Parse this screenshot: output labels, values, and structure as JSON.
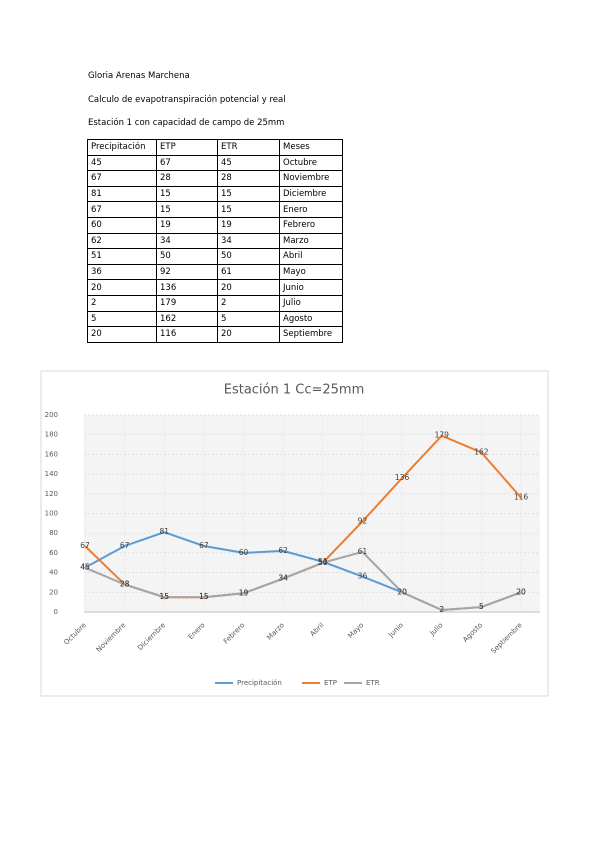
{
  "header": {
    "author": "Gloria Arenas Marchena",
    "subject": "Calculo de evapotranspiración potencial y real",
    "station": "Estación 1 con capacidad de campo de 25mm"
  },
  "table": {
    "columns": [
      "Precipitación",
      "ETP",
      "ETR",
      "Meses"
    ],
    "rows": [
      [
        45,
        67,
        45,
        "Octubre"
      ],
      [
        67,
        28,
        28,
        "Noviembre"
      ],
      [
        81,
        15,
        15,
        "Diciembre"
      ],
      [
        67,
        15,
        15,
        "Enero"
      ],
      [
        60,
        19,
        19,
        "Febrero"
      ],
      [
        62,
        34,
        34,
        "Marzo"
      ],
      [
        51,
        50,
        50,
        "Abril"
      ],
      [
        36,
        92,
        61,
        "Mayo"
      ],
      [
        20,
        136,
        20,
        "Junio"
      ],
      [
        2,
        179,
        2,
        "Julio"
      ],
      [
        5,
        162,
        5,
        "Agosto"
      ],
      [
        20,
        116,
        20,
        "Septiembre"
      ]
    ]
  },
  "chart_data": {
    "type": "line",
    "title": "Estación 1 Cc=25mm",
    "categories": [
      "Octubre",
      "Noviembre",
      "Diciembre",
      "Enero",
      "Febrero",
      "Marzo",
      "Abril",
      "Mayo",
      "Junio",
      "Julio",
      "Agosto",
      "Septiembre"
    ],
    "series": [
      {
        "name": "Precipitación",
        "color": "#5b9bd5",
        "values": [
          45,
          67,
          81,
          67,
          60,
          62,
          51,
          36,
          20,
          2,
          5,
          20
        ]
      },
      {
        "name": "ETP",
        "color": "#ed7d31",
        "values": [
          67,
          28,
          15,
          15,
          19,
          34,
          50,
          92,
          136,
          179,
          162,
          116
        ]
      },
      {
        "name": "ETR",
        "color": "#a5a5a5",
        "values": [
          45,
          28,
          15,
          15,
          19,
          34,
          50,
          61,
          20,
          2,
          5,
          20
        ]
      }
    ],
    "ylim": [
      0,
      200
    ],
    "yticks": [
      0,
      20,
      40,
      60,
      80,
      100,
      120,
      140,
      160,
      180,
      200
    ],
    "grid": true,
    "legend": "bottom"
  }
}
